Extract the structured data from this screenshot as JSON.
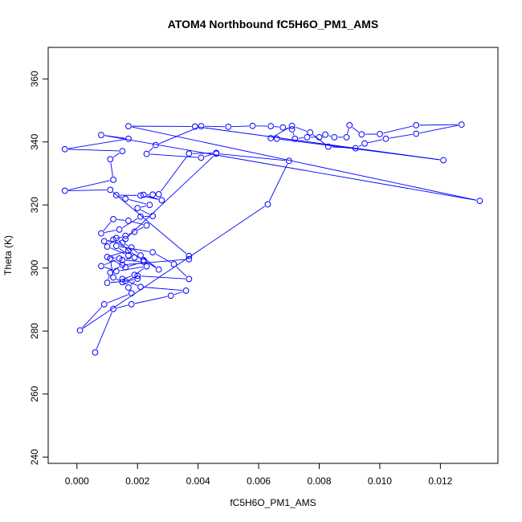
{
  "chart_data": {
    "type": "scatter",
    "title": "ATOM4 Northbound fC5H6O_PM1_AMS",
    "xlabel": "fC5H6O_PM1_AMS",
    "ylabel": "Theta (K)",
    "xlim": [
      -0.00095,
      0.0139
    ],
    "ylim": [
      238,
      370
    ],
    "xticks": [
      0.0,
      0.002,
      0.004,
      0.006,
      0.008,
      0.01,
      0.012
    ],
    "xtick_labels": [
      "0.000",
      "0.002",
      "0.004",
      "0.006",
      "0.008",
      "0.010",
      "0.012"
    ],
    "yticks": [
      240,
      260,
      280,
      300,
      320,
      340,
      360
    ],
    "ytick_labels": [
      "240",
      "260",
      "280",
      "300",
      "320",
      "340",
      "360"
    ],
    "grid": false,
    "legend": "none",
    "series": [
      {
        "color": "#0000ff",
        "style": "points-and-lines",
        "points": [
          [
            0.0006,
            273.2
          ],
          [
            0.0012,
            287.0
          ],
          [
            0.0018,
            288.5
          ],
          [
            0.0031,
            291.2
          ],
          [
            0.0036,
            292.8
          ],
          [
            0.0021,
            294.0
          ],
          [
            0.0015,
            296.5
          ],
          [
            0.0019,
            297.8
          ],
          [
            0.0023,
            300.5
          ],
          [
            0.0013,
            299.0
          ],
          [
            0.0008,
            300.6
          ],
          [
            0.0014,
            303.0
          ],
          [
            0.001,
            303.5
          ],
          [
            0.0017,
            305.5
          ],
          [
            0.0022,
            302.5
          ],
          [
            0.0027,
            299.5
          ],
          [
            0.0021,
            304.0
          ],
          [
            0.0018,
            306.5
          ],
          [
            0.0015,
            308.0
          ],
          [
            0.0009,
            308.5
          ],
          [
            0.0012,
            309.0
          ],
          [
            0.0016,
            310.2
          ],
          [
            0.0019,
            311.5
          ],
          [
            0.0023,
            313.5
          ],
          [
            0.0017,
            315.0
          ],
          [
            0.0012,
            315.5
          ],
          [
            0.0008,
            311.0
          ],
          [
            0.0014,
            312.2
          ],
          [
            0.0021,
            316.3
          ],
          [
            0.0025,
            316.5
          ],
          [
            0.002,
            319.0
          ],
          [
            0.0024,
            320.0
          ],
          [
            0.0016,
            322.0
          ],
          [
            0.0013,
            323.1
          ],
          [
            0.0021,
            323.0
          ],
          [
            0.0028,
            321.5
          ],
          [
            0.0022,
            323.2
          ],
          [
            0.0025,
            323.3
          ],
          [
            0.0027,
            323.4
          ],
          [
            0.0037,
            336.3
          ],
          [
            0.0046,
            336.5
          ],
          [
            0.0041,
            335.0
          ],
          [
            0.0023,
            336.2
          ],
          [
            0.0026,
            339.0
          ],
          [
            0.0041,
            345.0
          ],
          [
            0.005,
            344.8
          ],
          [
            0.0058,
            345.1
          ],
          [
            0.0064,
            345.0
          ],
          [
            0.0068,
            344.6
          ],
          [
            0.0071,
            344.0
          ],
          [
            0.0072,
            341.0
          ],
          [
            0.0076,
            341.5
          ],
          [
            0.008,
            341.5
          ],
          [
            0.0082,
            342.3
          ],
          [
            0.0085,
            341.5
          ],
          [
            0.0089,
            341.5
          ],
          [
            0.009,
            345.3
          ],
          [
            0.0094,
            342.4
          ],
          [
            0.01,
            342.5
          ],
          [
            0.0112,
            345.3
          ],
          [
            0.0127,
            345.5
          ],
          [
            0.0112,
            342.6
          ],
          [
            0.0102,
            341.0
          ],
          [
            0.0095,
            339.5
          ],
          [
            0.0092,
            338.0
          ],
          [
            0.0083,
            338.5
          ],
          [
            0.0077,
            343.0
          ],
          [
            0.0071,
            345.1
          ],
          [
            0.0064,
            341.2
          ],
          [
            0.0066,
            341.0
          ],
          [
            0.0121,
            334.2
          ],
          [
            0.0039,
            344.9
          ],
          [
            0.0017,
            345.0
          ],
          [
            0.0133,
            321.3
          ],
          [
            0.0008,
            342.2
          ],
          [
            0.0017,
            341.0
          ],
          [
            -0.0004,
            337.7
          ],
          [
            0.0015,
            337.1
          ],
          [
            0.0011,
            334.5
          ],
          [
            0.0012,
            328.0
          ],
          [
            -0.0004,
            324.5
          ],
          [
            0.0011,
            324.8
          ],
          [
            0.0037,
            303.8
          ],
          [
            0.0037,
            302.8
          ],
          [
            0.0015,
            301.0
          ],
          [
            0.0011,
            298.5
          ],
          [
            0.001,
            295.3
          ],
          [
            0.0016,
            295.8
          ],
          [
            0.002,
            297.5
          ],
          [
            0.0037,
            296.5
          ],
          [
            0.0032,
            301.2
          ],
          [
            0.0025,
            305.0
          ],
          [
            0.0013,
            307.0
          ],
          [
            0.0017,
            304.0
          ],
          [
            0.001,
            306.8
          ],
          [
            0.0013,
            309.5
          ],
          [
            0.0019,
            303.3
          ],
          [
            0.0015,
            302.5
          ],
          [
            0.0022,
            302.0
          ],
          [
            0.0016,
            300.2
          ],
          [
            0.0011,
            303.0
          ],
          [
            0.0012,
            297.0
          ],
          [
            0.0015,
            295.5
          ],
          [
            0.002,
            296.6
          ],
          [
            0.0017,
            293.8
          ],
          [
            0.0018,
            292.0
          ],
          [
            0.0009,
            288.5
          ],
          [
            0.0001,
            280.2
          ],
          [
            0.0063,
            320.2
          ],
          [
            0.007,
            334.0
          ],
          [
            0.0046,
            336.3
          ],
          [
            0.0016,
            309.2
          ]
        ]
      }
    ]
  }
}
